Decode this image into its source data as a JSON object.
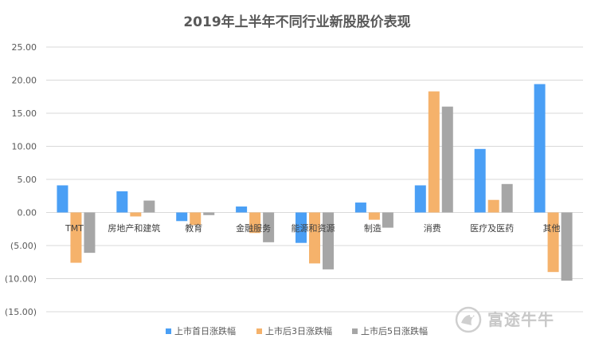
{
  "chart_data": {
    "type": "bar",
    "title": "2019年上半年不同行业新股股价表现",
    "categories": [
      "TMT",
      "房地产和建筑",
      "教育",
      "金融服务",
      "能源和资源",
      "制造",
      "消费",
      "医疗及医药",
      "其他"
    ],
    "series": [
      {
        "name": "上市首日涨跌幅",
        "color": "#4a9ff5",
        "values": [
          4.1,
          3.2,
          -1.3,
          0.9,
          -4.6,
          1.5,
          4.1,
          9.6,
          19.4
        ]
      },
      {
        "name": "上市后3日涨跌幅",
        "color": "#f5b26b",
        "values": [
          -7.6,
          -0.6,
          -1.9,
          -3.1,
          -7.7,
          -1.1,
          18.3,
          1.9,
          -9.0
        ]
      },
      {
        "name": "上市后5日涨跌幅",
        "color": "#a6a6a6",
        "values": [
          -6.1,
          1.8,
          -0.4,
          -4.5,
          -8.6,
          -2.3,
          16.0,
          4.3,
          -10.3
        ]
      }
    ],
    "yticks": [
      "25.00",
      "20.00",
      "15.00",
      "10.00",
      "5.00",
      "0.00",
      "(5.00)",
      "(10.00)",
      "(15.00)"
    ],
    "ylim": [
      -15,
      25
    ],
    "grid": true,
    "legend": "bottom"
  },
  "watermark": {
    "text": "富途牛牛"
  }
}
